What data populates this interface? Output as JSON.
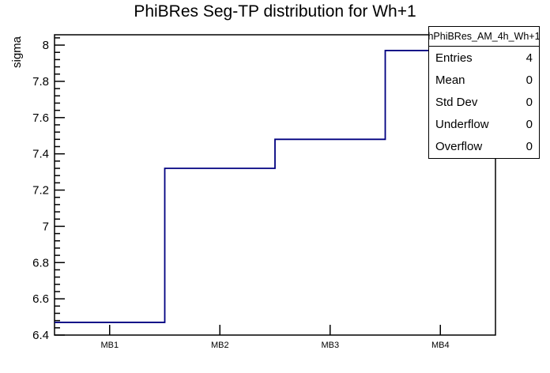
{
  "chart_data": {
    "type": "line",
    "style": "root-histogram-step",
    "title": "PhiBRes Seg-TP distribution for Wh+1",
    "categories": [
      "MB1",
      "MB2",
      "MB3",
      "MB4"
    ],
    "values": [
      6.47,
      7.32,
      7.48,
      7.97
    ],
    "xlabel": "",
    "ylabel": "sigma",
    "ylim": [
      6.4,
      8.057
    ],
    "y_major_step": 0.2,
    "y_minor_step": 0.04,
    "y_major_tick_labels": [
      "6.4",
      "6.6",
      "6.8",
      "7",
      "7.2",
      "7.4",
      "7.6",
      "7.8",
      "8"
    ],
    "grid": false,
    "legend": false
  },
  "stats_box": {
    "header": "hPhiBRes_AM_4h_Wh+1",
    "rows": [
      {
        "label": "Entries",
        "value": "4"
      },
      {
        "label": "Mean",
        "value": "0"
      },
      {
        "label": "Std Dev",
        "value": "0"
      },
      {
        "label": "Underflow",
        "value": "0"
      },
      {
        "label": "Overflow",
        "value": "0"
      }
    ]
  },
  "colors": {
    "background": "#ffffff",
    "frame": "#000000",
    "hist_line": "#000080",
    "text": "#000000"
  }
}
